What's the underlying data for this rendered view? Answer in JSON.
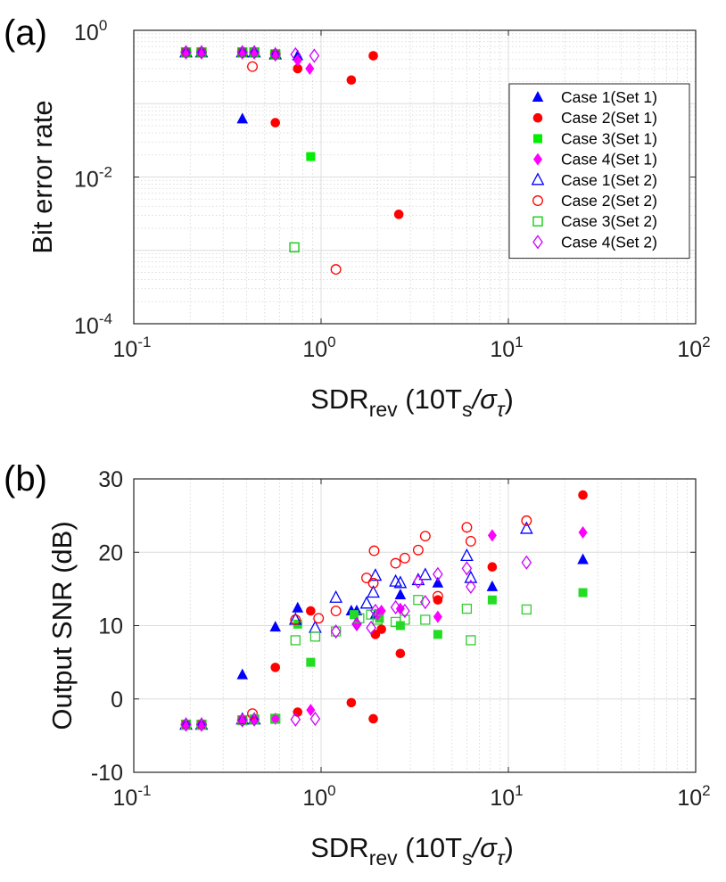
{
  "chart_data": [
    {
      "panel": "(a)",
      "type": "scatter",
      "xlabel": "SDR",
      "xlabel_sub": "rev",
      "xlabel_paren_main": "(10T",
      "xlabel_paren_sub": "s",
      "xlabel_paren_sigma": "/σ",
      "xlabel_paren_tau": "τ",
      "xlabel_paren_close": ")",
      "ylabel": "Bit error rate",
      "xscale": "log",
      "yscale": "log",
      "xlim": [
        0.1,
        100
      ],
      "ylim": [
        0.0001,
        1
      ],
      "xticks": [
        {
          "base": "10",
          "exp": "-1"
        },
        {
          "base": "10",
          "exp": "0"
        },
        {
          "base": "10",
          "exp": "1"
        },
        {
          "base": "10",
          "exp": "2"
        }
      ],
      "yticks": [
        {
          "base": "10",
          "exp": "-4"
        },
        {
          "base": "10",
          "exp": "-2"
        },
        {
          "base": "10",
          "exp": "0"
        }
      ],
      "legend_position": "top-right inside",
      "series": [
        {
          "name": "Case 1(Set 1)",
          "color": "#0000ff",
          "marker": "triangle",
          "filled": true,
          "x": [
            0.19,
            0.23,
            0.38,
            0.44,
            0.57,
            0.75
          ],
          "y": [
            0.5,
            0.5,
            0.062,
            0.5,
            0.47,
            0.45
          ]
        },
        {
          "name": "Case 2(Set 1)",
          "color": "#ff0000",
          "marker": "circle",
          "filled": true,
          "x": [
            0.19,
            0.23,
            0.38,
            0.57,
            0.75,
            1.45,
            1.9,
            2.6
          ],
          "y": [
            0.5,
            0.5,
            0.5,
            0.055,
            0.3,
            0.21,
            0.45,
            0.0031
          ]
        },
        {
          "name": "Case 3(Set 1)",
          "color": "#00ee00",
          "marker": "square",
          "filled": true,
          "x": [
            0.19,
            0.23,
            0.38,
            0.44,
            0.57,
            0.88
          ],
          "y": [
            0.5,
            0.5,
            0.5,
            0.5,
            0.47,
            0.019
          ]
        },
        {
          "name": "Case 4(Set 1)",
          "color": "#ff00ff",
          "marker": "diamond",
          "filled": true,
          "x": [
            0.19,
            0.23,
            0.38,
            0.44,
            0.57,
            0.75,
            0.87
          ],
          "y": [
            0.5,
            0.5,
            0.5,
            0.5,
            0.47,
            0.39,
            0.3
          ]
        },
        {
          "name": "Case 1(Set 2)",
          "color": "#0000ff",
          "marker": "triangle",
          "filled": false,
          "x": [
            0.19,
            0.23,
            0.38,
            0.44,
            0.57
          ],
          "y": [
            0.5,
            0.5,
            0.5,
            0.5,
            0.47
          ]
        },
        {
          "name": "Case 2(Set 2)",
          "color": "#ff0000",
          "marker": "circle",
          "filled": false,
          "x": [
            0.19,
            0.23,
            0.38,
            0.43,
            0.57,
            1.2
          ],
          "y": [
            0.5,
            0.5,
            0.5,
            0.32,
            0.47,
            0.00055
          ]
        },
        {
          "name": "Case 3(Set 2)",
          "color": "#00cc00",
          "marker": "square",
          "filled": false,
          "x": [
            0.19,
            0.23,
            0.38,
            0.44,
            0.57,
            0.72
          ],
          "y": [
            0.5,
            0.5,
            0.5,
            0.5,
            0.47,
            0.0011
          ]
        },
        {
          "name": "Case 4(Set 2)",
          "color": "#cc00ff",
          "marker": "diamond",
          "filled": false,
          "x": [
            0.19,
            0.23,
            0.38,
            0.44,
            0.57,
            0.73,
            0.92
          ],
          "y": [
            0.5,
            0.5,
            0.5,
            0.5,
            0.47,
            0.47,
            0.45
          ]
        }
      ]
    },
    {
      "panel": "(b)",
      "type": "scatter",
      "xlabel": "SDR",
      "xlabel_sub": "rev",
      "xlabel_paren_main": "(10T",
      "xlabel_paren_sub": "s",
      "xlabel_paren_sigma": "/σ",
      "xlabel_paren_tau": "τ",
      "xlabel_paren_close": ")",
      "ylabel": "Output SNR (dB)",
      "xscale": "log",
      "yscale": "linear",
      "xlim": [
        0.1,
        100
      ],
      "ylim": [
        -10,
        30
      ],
      "xticks": [
        {
          "base": "10",
          "exp": "-1"
        },
        {
          "base": "10",
          "exp": "0"
        },
        {
          "base": "10",
          "exp": "1"
        },
        {
          "base": "10",
          "exp": "2"
        }
      ],
      "yticks": [
        "-10",
        "0",
        "10",
        "20",
        "30"
      ],
      "series": [
        {
          "name": "Case 1(Set 1)",
          "color": "#0000ff",
          "marker": "triangle",
          "filled": true,
          "x": [
            0.19,
            0.23,
            0.38,
            0.44,
            0.57,
            0.75,
            1.45,
            1.55,
            1.95,
            2.65,
            4.2,
            8.2,
            25
          ],
          "y": [
            -3.5,
            -3.5,
            3.3,
            -2.8,
            9.8,
            12.4,
            12.0,
            12.0,
            11.5,
            14.2,
            15.8,
            15.3,
            19.0
          ]
        },
        {
          "name": "Case 2(Set 1)",
          "color": "#ff0000",
          "marker": "circle",
          "filled": true,
          "x": [
            0.19,
            0.23,
            0.38,
            0.57,
            0.75,
            0.88,
            1.45,
            1.9,
            1.95,
            2.1,
            2.65,
            4.2,
            8.2,
            25
          ],
          "y": [
            -3.5,
            -3.5,
            -2.9,
            4.3,
            -1.8,
            12.0,
            -0.5,
            -2.7,
            8.8,
            9.5,
            6.2,
            13.5,
            18.0,
            27.8
          ]
        },
        {
          "name": "Case 3(Set 1)",
          "color": "#22dd22",
          "marker": "square",
          "filled": true,
          "x": [
            0.19,
            0.23,
            0.38,
            0.44,
            0.57,
            0.75,
            0.88,
            1.5,
            2.05,
            2.65,
            4.2,
            8.2,
            25
          ],
          "y": [
            -3.5,
            -3.5,
            -2.9,
            -2.8,
            -2.7,
            10.2,
            5.0,
            11.5,
            11.0,
            10.0,
            8.8,
            13.5,
            14.5
          ]
        },
        {
          "name": "Case 4(Set 1)",
          "color": "#ff00ff",
          "marker": "diamond",
          "filled": true,
          "x": [
            0.19,
            0.23,
            0.38,
            0.44,
            0.57,
            0.88,
            1.55,
            2.0,
            2.1,
            2.65,
            4.2,
            8.2,
            25
          ],
          "y": [
            -3.5,
            -3.5,
            -2.9,
            -2.8,
            -2.7,
            -1.5,
            10.2,
            11.5,
            12.0,
            12.3,
            11.2,
            22.3,
            22.7
          ]
        },
        {
          "name": "Case 1(Set 2)",
          "color": "#0000ff",
          "marker": "triangle",
          "filled": false,
          "x": [
            0.19,
            0.23,
            0.38,
            0.44,
            0.73,
            0.93,
            1.2,
            1.75,
            1.9,
            1.95,
            2.5,
            2.65,
            3.3,
            3.6,
            6.0,
            6.3,
            12.5
          ],
          "y": [
            -3.5,
            -3.5,
            -2.8,
            -2.8,
            10.8,
            9.7,
            13.8,
            13.0,
            14.5,
            16.8,
            16.0,
            15.8,
            16.2,
            16.9,
            19.5,
            16.5,
            23.2
          ]
        },
        {
          "name": "Case 2(Set 2)",
          "color": "#ff0000",
          "marker": "circle",
          "filled": false,
          "x": [
            0.19,
            0.23,
            0.38,
            0.43,
            0.73,
            0.97,
            1.2,
            1.75,
            1.9,
            1.92,
            2.5,
            2.8,
            3.3,
            3.6,
            4.2,
            6.0,
            6.3,
            12.5
          ],
          "y": [
            -3.5,
            -3.5,
            -2.9,
            -2.0,
            10.8,
            11.0,
            12.0,
            16.5,
            15.8,
            20.2,
            18.5,
            19.2,
            20.3,
            22.2,
            14.0,
            23.4,
            21.5,
            24.3
          ]
        },
        {
          "name": "Case 3(Set 2)",
          "color": "#33cc33",
          "marker": "square",
          "filled": false,
          "x": [
            0.19,
            0.23,
            0.38,
            0.44,
            0.57,
            0.73,
            0.93,
            1.2,
            1.6,
            1.85,
            2.0,
            2.5,
            2.8,
            3.3,
            3.6,
            6.0,
            6.3,
            12.5
          ],
          "y": [
            -3.5,
            -3.5,
            -2.9,
            -2.8,
            -2.7,
            8.0,
            8.5,
            9.2,
            11.0,
            11.5,
            10.8,
            10.5,
            10.8,
            13.5,
            10.8,
            12.3,
            8.0,
            12.2
          ]
        },
        {
          "name": "Case 4(Set 2)",
          "color": "#cc00ff",
          "marker": "diamond",
          "filled": false,
          "x": [
            0.19,
            0.23,
            0.38,
            0.44,
            0.73,
            0.93,
            1.2,
            1.55,
            1.85,
            1.95,
            2.5,
            2.8,
            3.3,
            3.6,
            4.2,
            6.0,
            6.3,
            12.5
          ],
          "y": [
            -3.5,
            -3.5,
            -2.9,
            -2.8,
            -2.8,
            -2.7,
            9.2,
            10.2,
            9.7,
            12.0,
            12.5,
            12.0,
            16.0,
            13.2,
            17.0,
            17.8,
            15.3,
            18.6
          ]
        }
      ]
    }
  ]
}
